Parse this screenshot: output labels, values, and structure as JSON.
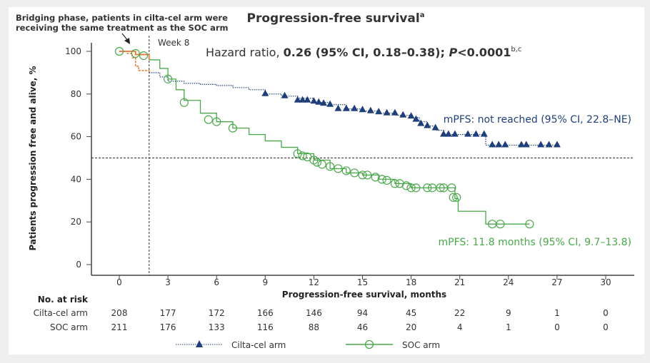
{
  "chart_data": {
    "type": "line",
    "title": "Progression-free survival",
    "title_superscript": "a",
    "xlabel": "Progression-free survival, months",
    "ylabel": "Patients progression free and alive, %",
    "xlim": [
      0,
      30
    ],
    "ylim": [
      0,
      100
    ],
    "x_ticks": [
      0,
      3,
      6,
      9,
      12,
      15,
      18,
      21,
      24,
      27,
      30
    ],
    "y_ticks": [
      0,
      20,
      40,
      60,
      80,
      100
    ],
    "grid": false,
    "reference_lines": {
      "median_y": 50,
      "week8_x": 1.84,
      "week8_label": "Week 8"
    },
    "annotation_bridging": [
      "Bridging phase, patients in cilta-cel arm were",
      "receiving the same treatment as the SOC arm"
    ],
    "hazard_ratio": {
      "prefix": "Hazard ratio, ",
      "value": "0.26 (95% CI, 0.18–0.38); ",
      "p_label": "P",
      "p_value": "<0.0001",
      "superscript": "b,c"
    },
    "series": [
      {
        "name": "Cilta-cel arm",
        "color": "#1f3f7a",
        "bridging_color": "#e8772e",
        "marker": "triangle",
        "median_label": "mPFS: not reached (95% CI, 22.8–NE)",
        "steps": [
          [
            0,
            100
          ],
          [
            0.5,
            99
          ],
          [
            0.8,
            97
          ],
          [
            1,
            93
          ],
          [
            1.2,
            91
          ],
          [
            1.84,
            90
          ],
          [
            2.5,
            88
          ],
          [
            3,
            86
          ],
          [
            4,
            85
          ],
          [
            5,
            84.5
          ],
          [
            6,
            84
          ],
          [
            7,
            83
          ],
          [
            8,
            82
          ],
          [
            9,
            80
          ],
          [
            10,
            79
          ],
          [
            11,
            78
          ],
          [
            12,
            76
          ],
          [
            13,
            75
          ],
          [
            14,
            73
          ],
          [
            15,
            72
          ],
          [
            16,
            71
          ],
          [
            17,
            70
          ],
          [
            18,
            69
          ],
          [
            18.5,
            67
          ],
          [
            19,
            65
          ],
          [
            19.5,
            63
          ],
          [
            20,
            61
          ],
          [
            22.6,
            56
          ],
          [
            27,
            56
          ]
        ],
        "censored": [
          [
            9,
            80
          ],
          [
            10.2,
            79
          ],
          [
            11,
            77
          ],
          [
            11.3,
            77
          ],
          [
            11.6,
            77
          ],
          [
            12,
            76.5
          ],
          [
            12.3,
            76
          ],
          [
            12.6,
            75.5
          ],
          [
            13,
            75
          ],
          [
            13.5,
            73
          ],
          [
            14,
            73
          ],
          [
            14.5,
            73
          ],
          [
            15,
            72.5
          ],
          [
            15.5,
            72
          ],
          [
            16,
            71.5
          ],
          [
            16.5,
            71
          ],
          [
            17,
            71
          ],
          [
            17.5,
            70
          ],
          [
            18,
            69.5
          ],
          [
            18.3,
            68
          ],
          [
            18.6,
            66
          ],
          [
            19,
            65
          ],
          [
            19.5,
            64
          ],
          [
            20,
            61
          ],
          [
            20.3,
            61
          ],
          [
            20.7,
            61
          ],
          [
            21.5,
            61
          ],
          [
            22,
            61
          ],
          [
            22.5,
            61
          ],
          [
            23,
            56
          ],
          [
            23.4,
            56
          ],
          [
            23.8,
            56
          ],
          [
            24.8,
            56
          ],
          [
            25.1,
            56
          ],
          [
            26,
            56
          ],
          [
            26.5,
            56
          ],
          [
            27,
            56
          ]
        ]
      },
      {
        "name": "SOC arm",
        "color": "#4aa84a",
        "marker": "circle",
        "median_label": "mPFS: 11.8 months (95% CI, 9.7–13.8)",
        "steps": [
          [
            0,
            100
          ],
          [
            1,
            98.5
          ],
          [
            1.84,
            96
          ],
          [
            2.5,
            92
          ],
          [
            3,
            87
          ],
          [
            3.5,
            82
          ],
          [
            4,
            77
          ],
          [
            5,
            71
          ],
          [
            6,
            67
          ],
          [
            7,
            64
          ],
          [
            8,
            61
          ],
          [
            9,
            58
          ],
          [
            10,
            55
          ],
          [
            11,
            52
          ],
          [
            12,
            49
          ],
          [
            13,
            45
          ],
          [
            14,
            43
          ],
          [
            15,
            42
          ],
          [
            16,
            40
          ],
          [
            17,
            38
          ],
          [
            18,
            36
          ],
          [
            20.6,
            36
          ],
          [
            20.7,
            31
          ],
          [
            20.9,
            25
          ],
          [
            22.6,
            19
          ],
          [
            25.3,
            19
          ]
        ],
        "censored": [
          [
            0,
            100
          ],
          [
            1,
            99
          ],
          [
            1.5,
            98
          ],
          [
            3,
            87
          ],
          [
            4,
            76
          ],
          [
            5.5,
            68
          ],
          [
            6,
            67
          ],
          [
            7,
            64
          ],
          [
            11,
            52
          ],
          [
            11.3,
            51
          ],
          [
            11.6,
            50.5
          ],
          [
            12,
            49
          ],
          [
            12.2,
            48
          ],
          [
            12.5,
            47
          ],
          [
            13,
            46
          ],
          [
            13.5,
            45
          ],
          [
            14,
            44
          ],
          [
            14.5,
            43
          ],
          [
            15,
            42
          ],
          [
            15.3,
            42
          ],
          [
            15.8,
            41
          ],
          [
            16.2,
            40
          ],
          [
            16.5,
            39.5
          ],
          [
            17,
            38
          ],
          [
            17.3,
            38
          ],
          [
            17.7,
            37
          ],
          [
            18,
            36
          ],
          [
            18.3,
            36
          ],
          [
            19,
            36
          ],
          [
            19.3,
            36
          ],
          [
            19.8,
            36
          ],
          [
            20,
            36
          ],
          [
            20.5,
            36
          ],
          [
            20.6,
            31.5
          ],
          [
            20.8,
            31.5
          ],
          [
            23,
            19
          ],
          [
            23.5,
            19
          ],
          [
            25.3,
            19
          ]
        ]
      }
    ],
    "risk_table": {
      "title": "No. at risk",
      "rows": [
        {
          "label": "Cilta-cel arm",
          "values": [
            208,
            177,
            172,
            166,
            146,
            94,
            45,
            22,
            9,
            1,
            0
          ]
        },
        {
          "label": "SOC arm",
          "values": [
            211,
            176,
            133,
            116,
            88,
            46,
            20,
            4,
            1,
            0,
            0
          ]
        }
      ]
    },
    "legend": {
      "placement": "bottom",
      "items": [
        "Cilta-cel arm",
        "SOC arm"
      ]
    }
  }
}
